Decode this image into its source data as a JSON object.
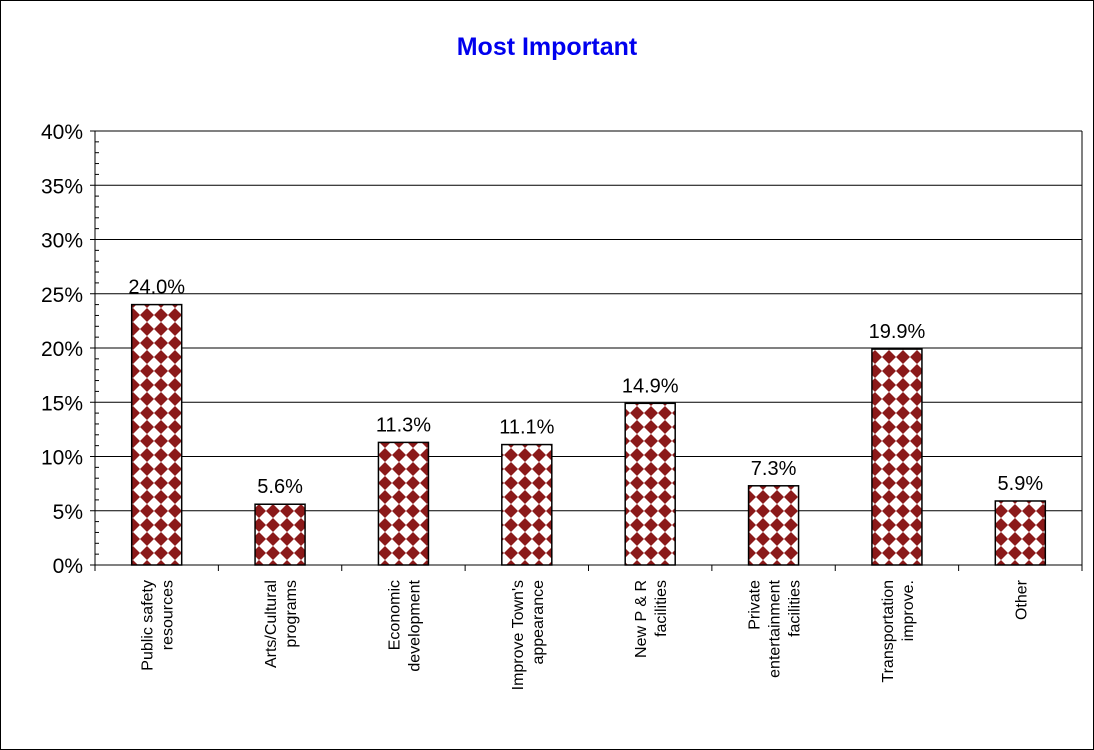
{
  "colors": {
    "title": "#0000ee",
    "bar_fill_a": "#8b1a1a",
    "bar_fill_b": "#ffffff",
    "bar_stroke": "#000000",
    "gridline": "#000000"
  },
  "chart_data": {
    "type": "bar",
    "title": "Most Important",
    "xlabel": "",
    "ylabel": "",
    "ylim": [
      0,
      40
    ],
    "y_ticks": [
      0,
      5,
      10,
      15,
      20,
      25,
      30,
      35,
      40
    ],
    "y_tick_labels": [
      "0%",
      "5%",
      "10%",
      "15%",
      "20%",
      "25%",
      "30%",
      "35%",
      "40%"
    ],
    "grid": true,
    "legend": "none",
    "categories": [
      [
        "Public safety",
        "resources"
      ],
      [
        "Arts/Cultural",
        "programs"
      ],
      [
        "Economic",
        "development"
      ],
      [
        "Improve Town's",
        "appearance"
      ],
      [
        "New P & R",
        "facilities"
      ],
      [
        "Private",
        "entertainment",
        "facilities"
      ],
      [
        "Transportation",
        "improve."
      ],
      [
        "Other"
      ]
    ],
    "values": [
      24.0,
      5.6,
      11.3,
      11.1,
      14.9,
      7.3,
      19.9,
      5.9
    ],
    "data_labels": [
      "24.0%",
      "5.6%",
      "11.3%",
      "11.1%",
      "14.9%",
      "7.3%",
      "19.9%",
      "5.9%"
    ]
  }
}
